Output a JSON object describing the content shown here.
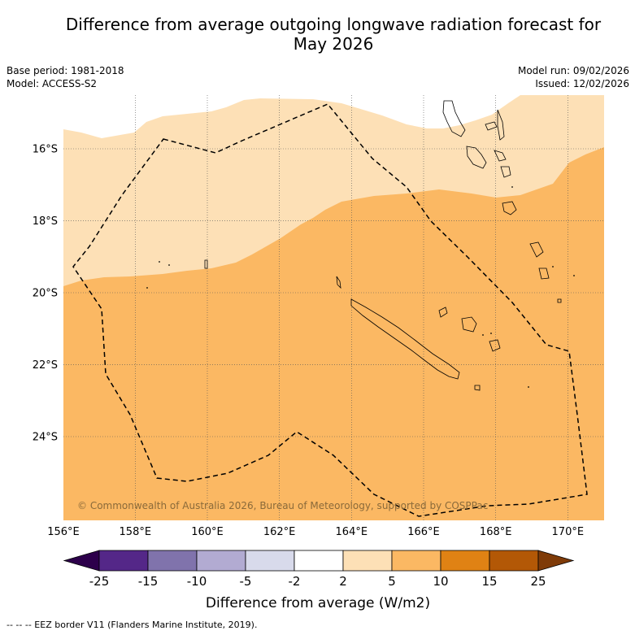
{
  "title_line1": "Difference from average outgoing longwave radiation forecast for",
  "title_line2": "May 2026",
  "base_period": "Base period: 1981-2018",
  "model": "Model: ACCESS-S2",
  "model_run": "Model run: 09/02/2026",
  "issued": "Issued: 12/02/2026",
  "copyright": "© Commonwealth of Australia 2026, Bureau of Meteorology, supported by COSPPac",
  "footer": "--  --  -- EEZ border V11 (Flanders Marine Institute, 2019).",
  "chart_data": {
    "type": "heatmap",
    "title": "Difference from average outgoing longwave radiation forecast for May 2026",
    "xlim": [
      156,
      171
    ],
    "ylim": [
      -26.3,
      -14.4
    ],
    "x_ticks": [
      156,
      158,
      160,
      162,
      164,
      166,
      168,
      170
    ],
    "x_tick_labels": [
      "156°E",
      "158°E",
      "160°E",
      "162°E",
      "164°E",
      "166°E",
      "168°E",
      "170°E"
    ],
    "y_ticks": [
      -16,
      -18,
      -20,
      -22,
      -24
    ],
    "y_tick_labels": [
      "16°S",
      "18°S",
      "20°S",
      "22°S",
      "24°S"
    ],
    "grid": true,
    "field_classes": [
      {
        "range": "2 to 5",
        "color": "#fde0b6",
        "region": "north"
      },
      {
        "range": "5 to 10",
        "color": "#fbb863",
        "region": "south"
      }
    ],
    "colorbar": {
      "label": "Difference from average (W/m2)",
      "ticks": [
        "-25",
        "-15",
        "-10",
        "-5",
        "-2",
        "2",
        "5",
        "10",
        "15",
        "25"
      ],
      "colors": [
        "#542788",
        "#8073ac",
        "#b2abd2",
        "#d8daeb",
        "#ffffff",
        "#fde0b6",
        "#fbb863",
        "#e08214",
        "#b35806"
      ],
      "under_color": "#2d004b",
      "over_color": "#7f3b08"
    }
  }
}
